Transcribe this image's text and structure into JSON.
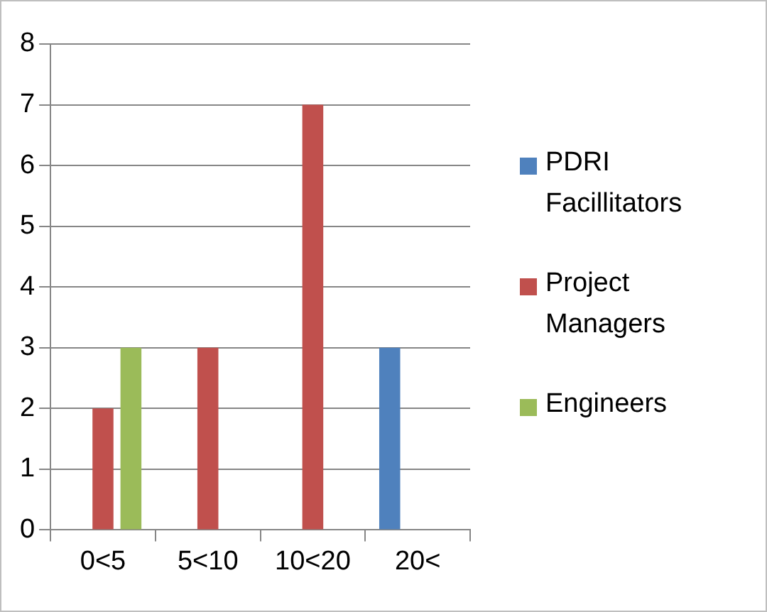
{
  "chart_data": {
    "type": "bar",
    "categories": [
      "0<5",
      "5<10",
      "10<20",
      "20<"
    ],
    "series": [
      {
        "name": "PDRI Facillitators",
        "color": "#4f81bd",
        "values": [
          0,
          0,
          0,
          3
        ]
      },
      {
        "name": "Project Managers",
        "color": "#c0504d",
        "values": [
          2,
          3,
          7,
          0
        ]
      },
      {
        "name": "Engineers",
        "color": "#9bbb59",
        "values": [
          3,
          0,
          0,
          0
        ]
      }
    ],
    "ylim": [
      0,
      8
    ],
    "yticks": [
      0,
      1,
      2,
      3,
      4,
      5,
      6,
      7,
      8
    ],
    "grid": "y",
    "legend": "right"
  }
}
